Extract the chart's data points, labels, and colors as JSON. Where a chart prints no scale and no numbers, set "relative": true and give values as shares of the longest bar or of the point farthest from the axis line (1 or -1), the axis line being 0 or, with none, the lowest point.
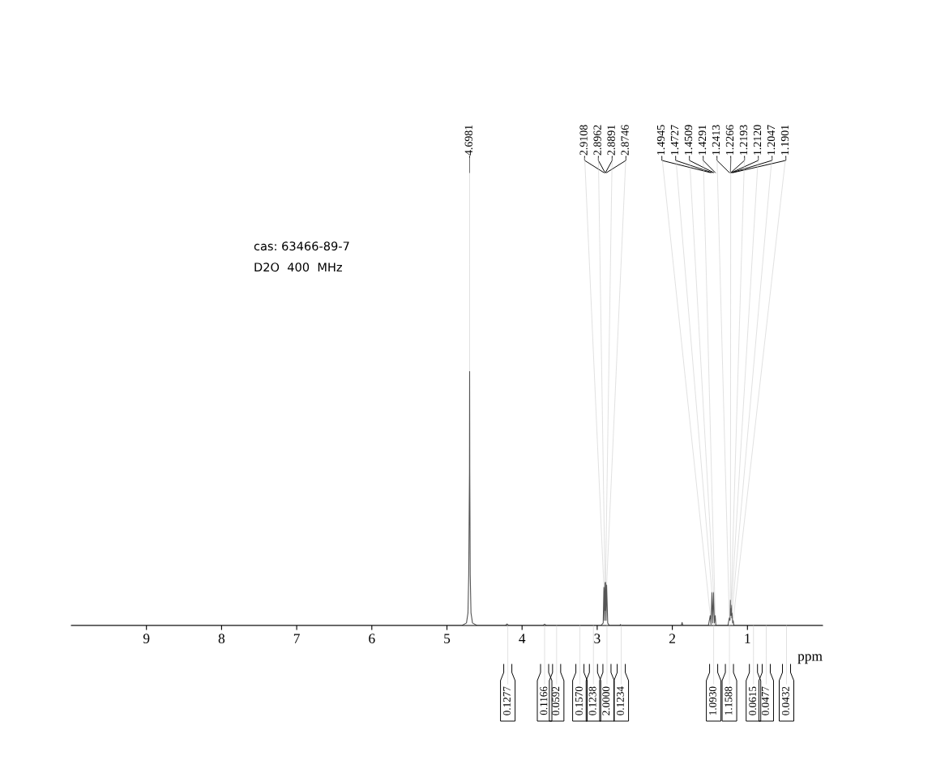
{
  "chart_data": {
    "type": "line",
    "relative": true,
    "xlabel": "ppm",
    "xlim": [
      10,
      0
    ],
    "xticks": [
      1,
      2,
      3,
      4,
      5,
      6,
      7,
      8,
      9
    ],
    "x": [
      10,
      4.8,
      4.74,
      4.72,
      4.71,
      4.7,
      4.6981,
      4.696,
      4.69,
      4.68,
      4.66,
      4.6,
      4.22,
      4.2,
      4.18,
      3.72,
      3.7,
      3.68,
      2.95,
      2.92,
      2.9108,
      2.903,
      2.8962,
      2.8925,
      2.8891,
      2.882,
      2.8746,
      2.86,
      2.84,
      2.7,
      2.69,
      2.68,
      1.88,
      1.87,
      1.86,
      1.52,
      1.4945,
      1.485,
      1.4727,
      1.462,
      1.4509,
      1.44,
      1.4291,
      1.42,
      1.26,
      1.2413,
      1.232,
      1.2266,
      1.222,
      1.2193,
      1.215,
      1.212,
      1.208,
      1.2047,
      1.197,
      1.1901,
      1.18,
      0
    ],
    "series": [
      {
        "color": "#555555",
        "values": [
          0,
          0,
          0.01,
          0.05,
          0.2,
          0.6,
          1,
          0.6,
          0.2,
          0.05,
          0.01,
          0,
          0,
          0.006,
          0,
          0,
          0.005,
          0,
          0,
          0.01,
          0.15,
          0.02,
          0.17,
          0.06,
          0.17,
          0.02,
          0.16,
          0.01,
          0,
          0,
          0.004,
          0,
          0,
          0.012,
          0,
          0,
          0.04,
          0.005,
          0.13,
          0.01,
          0.13,
          0.01,
          0.04,
          0,
          0,
          0.03,
          0.02,
          0.1,
          0.04,
          0.07,
          0.04,
          0.08,
          0.03,
          0.05,
          0.01,
          0.02,
          0,
          0
        ]
      }
    ],
    "annotations": [
      "cas: 63466-89-7",
      "D2O  400  MHz",
      {
        "text": "4.6981",
        "x": 4.6981,
        "y": 1
      },
      {
        "text": "2.9108",
        "x": 2.9108,
        "y": 0.15
      },
      {
        "text": "2.8962",
        "x": 2.8962,
        "y": 0.17
      },
      {
        "text": "2.8891",
        "x": 2.8891,
        "y": 0.17
      },
      {
        "text": "2.8746",
        "x": 2.8746,
        "y": 0.16
      },
      {
        "text": "1.4945",
        "x": 1.4945,
        "y": 0.04
      },
      {
        "text": "1.4727",
        "x": 1.4727,
        "y": 0.13
      },
      {
        "text": "1.4509",
        "x": 1.4509,
        "y": 0.13
      },
      {
        "text": "1.4291",
        "x": 1.4291,
        "y": 0.04
      },
      {
        "text": "1.2413",
        "x": 1.2413,
        "y": 0.03
      },
      {
        "text": "1.2266",
        "x": 1.2266,
        "y": 0.1
      },
      {
        "text": "1.2193",
        "x": 1.2193,
        "y": 0.07
      },
      {
        "text": "1.2120",
        "x": 1.212,
        "y": 0.08
      },
      {
        "text": "1.2047",
        "x": 1.2047,
        "y": 0.05
      },
      {
        "text": "1.1901",
        "x": 1.1901,
        "y": 0.02
      },
      {
        "text": "0.1277",
        "x": 4.19,
        "y": 0
      },
      {
        "text": "0.1166",
        "x": 3.7,
        "y": 0
      },
      {
        "text": "0.0592",
        "x": 3.54,
        "y": 0
      },
      {
        "text": "0.1570",
        "x": 3.23,
        "y": 0
      },
      {
        "text": "0.1238",
        "x": 3.05,
        "y": 0
      },
      {
        "text": "2.0000",
        "x": 2.87,
        "y": 0
      },
      {
        "text": "0.1234",
        "x": 2.68,
        "y": 0
      },
      {
        "text": "1.0930",
        "x": 1.45,
        "y": 0
      },
      {
        "text": "1.1588",
        "x": 1.24,
        "y": 0
      },
      {
        "text": "0.0615",
        "x": 0.92,
        "y": 0
      },
      {
        "text": "0.0477",
        "x": 0.75,
        "y": 0
      },
      {
        "text": "0.0432",
        "x": 0.48,
        "y": 0
      }
    ]
  }
}
